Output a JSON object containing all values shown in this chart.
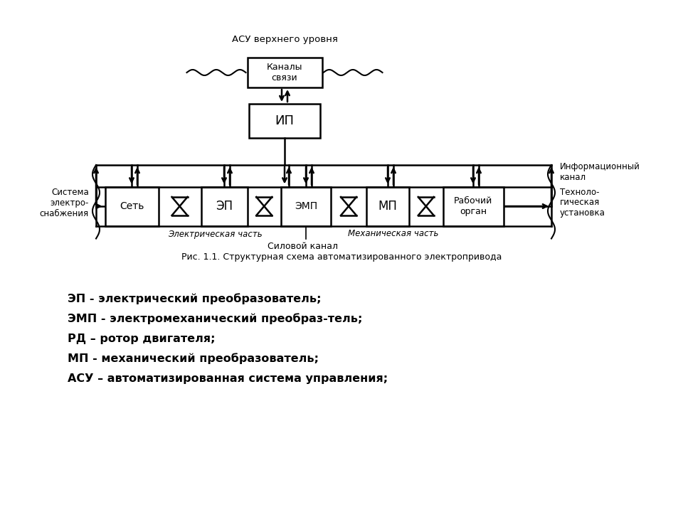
{
  "bg_color": "#ffffff",
  "asu_label": "АСУ верхнего уровня",
  "kanaly_label": "Каналы\nсвязи",
  "ip_label": "ИП",
  "set_label": "Сеть",
  "ep_label": "ЭП",
  "emp_label": "ЭМП",
  "mp_label": "МП",
  "rabochiy_label": "Рабочий\nорган",
  "info_kanal_label": "Информационный\nканал",
  "sist_label": "Система\nэлектро-\nснабжения",
  "techn_label": "Техноло-\nгическая\nустановка",
  "el_chast_label": "Электрическая часть",
  "mech_chast_label": "Механическая часть",
  "silovoy_label": "Силовой канал",
  "caption": "Рис. 1.1. Структурная схема автоматизированного электропривода",
  "legend_lines": [
    "ЭП - электрический преобразователь;",
    "ЭМП - электромеханический преобраз-тель;",
    "РД – ротор двигателя;",
    "МП - механический преобразователь;",
    "АСУ – автоматизированная система управления;"
  ]
}
